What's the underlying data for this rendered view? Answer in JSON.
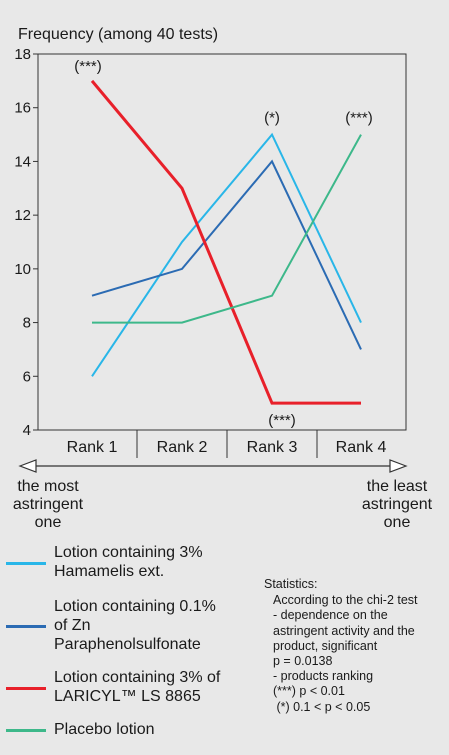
{
  "chart_data": {
    "type": "line",
    "ylabel": "Frequency (among 40 tests)",
    "xlabel": "",
    "ylim": [
      4,
      18
    ],
    "yticks": [
      4,
      6,
      8,
      10,
      12,
      14,
      16,
      18
    ],
    "grid": false,
    "categories": [
      "Rank 1",
      "Rank 2",
      "Rank 3",
      "Rank 4"
    ],
    "series": [
      {
        "name": "Lotion containing 3% Hamamelis ext.",
        "color": "#29b6e8",
        "values": [
          6,
          11,
          15,
          8
        ]
      },
      {
        "name": "Lotion containing 0.1% of Zn Paraphenolsulfonate",
        "color": "#2b6bb3",
        "values": [
          9,
          10,
          14,
          7
        ]
      },
      {
        "name": "Lotion containing 3% of LARICYL™ LS 8865",
        "color": "#e8202a",
        "values": [
          17,
          13,
          5,
          5
        ]
      },
      {
        "name": "Placebo lotion",
        "color": "#3db88a",
        "values": [
          8,
          8,
          9,
          15
        ]
      }
    ],
    "annotations": [
      {
        "text": "(***)",
        "x": "Rank 1",
        "y": 17
      },
      {
        "text": "(*)",
        "x": "Rank 3",
        "y": 15
      },
      {
        "text": "(***)",
        "x": "Rank 4",
        "y": 15
      },
      {
        "text": "(***)",
        "x": "Rank 3",
        "y": 5
      }
    ],
    "scale_left": "the most\nastringent\none",
    "scale_right": "the least\nastringent\none"
  },
  "legend": [
    {
      "label": "Lotion containing 3%\nHamamelis ext.",
      "color": "#29b6e8"
    },
    {
      "label": "Lotion containing 0.1%\nof Zn\nParaphenolsulfonate",
      "color": "#2b6bb3"
    },
    {
      "label": "Lotion containing 3% of\nLARICYL™ LS 8865",
      "color": "#e8202a"
    },
    {
      "label": "Placebo lotion",
      "color": "#3db88a"
    }
  ],
  "stats": {
    "title": "Statistics:",
    "lines": [
      "According to the chi-2 test",
      "- dependence on the",
      "astringent activity and the",
      "product, significant",
      "p = 0.0138",
      "- products ranking",
      "(***) p < 0.01",
      " (*) 0.1 < p < 0.05"
    ]
  }
}
